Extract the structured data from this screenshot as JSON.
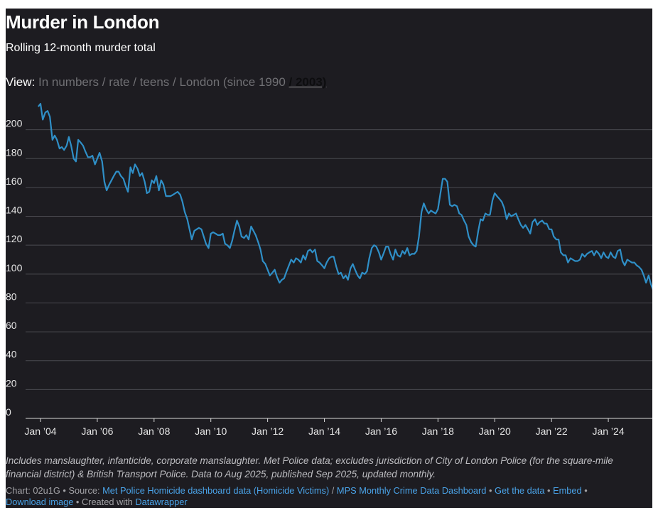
{
  "title": "Murder in London",
  "subtitle": "Rolling 12-month murder total",
  "view": {
    "label": "View:",
    "options": [
      "In numbers",
      "rate",
      "teens",
      "London (since 1990",
      "/ 2003)"
    ],
    "separator": " / ",
    "active_index": 4
  },
  "colors": {
    "background": "#1d1c21",
    "line": "#2f8fc7",
    "grid": "#4a4a50",
    "axis_text": "#e6e6e6",
    "link": "#4aa3e8"
  },
  "chart_data": {
    "type": "line",
    "title": "Murder in London",
    "subtitle": "Rolling 12-month murder total",
    "xlabel": "",
    "ylabel": "",
    "x_range": [
      2003.9,
      2025.25
    ],
    "ylim": [
      0,
      220
    ],
    "yticks": [
      0,
      20,
      40,
      60,
      80,
      100,
      120,
      140,
      160,
      180,
      200
    ],
    "xticks": [
      {
        "value": 2004,
        "label": "Jan ’04"
      },
      {
        "value": 2006,
        "label": "Jan ’06"
      },
      {
        "value": 2008,
        "label": "Jan ’08"
      },
      {
        "value": 2010,
        "label": "Jan ’10"
      },
      {
        "value": 2012,
        "label": "Jan ’12"
      },
      {
        "value": 2014,
        "label": "Jan ’14"
      },
      {
        "value": 2016,
        "label": "Jan ’16"
      },
      {
        "value": 2018,
        "label": "Jan ’18"
      },
      {
        "value": 2020,
        "label": "Jan ’20"
      },
      {
        "value": 2022,
        "label": "Jan ’22"
      },
      {
        "value": 2024,
        "label": "Jan ’24"
      }
    ],
    "grid": true,
    "series": [
      {
        "name": "Rolling 12-month murder total",
        "points": [
          [
            2003.92,
            216
          ],
          [
            2004.0,
            218
          ],
          [
            2004.08,
            207
          ],
          [
            2004.17,
            212
          ],
          [
            2004.25,
            213
          ],
          [
            2004.33,
            209
          ],
          [
            2004.42,
            193
          ],
          [
            2004.5,
            196
          ],
          [
            2004.58,
            193
          ],
          [
            2004.67,
            187
          ],
          [
            2004.75,
            188
          ],
          [
            2004.83,
            186
          ],
          [
            2004.92,
            189
          ],
          [
            2005.0,
            195
          ],
          [
            2005.08,
            189
          ],
          [
            2005.17,
            180
          ],
          [
            2005.25,
            178
          ],
          [
            2005.33,
            193
          ],
          [
            2005.42,
            191
          ],
          [
            2005.5,
            189
          ],
          [
            2005.58,
            185
          ],
          [
            2005.67,
            181
          ],
          [
            2005.75,
            181
          ],
          [
            2005.83,
            182
          ],
          [
            2005.92,
            176
          ],
          [
            2006.0,
            180
          ],
          [
            2006.08,
            184
          ],
          [
            2006.17,
            178
          ],
          [
            2006.25,
            164
          ],
          [
            2006.33,
            158
          ],
          [
            2006.42,
            162
          ],
          [
            2006.5,
            165
          ],
          [
            2006.58,
            168
          ],
          [
            2006.67,
            171
          ],
          [
            2006.75,
            171
          ],
          [
            2006.83,
            168
          ],
          [
            2006.92,
            166
          ],
          [
            2007.0,
            161
          ],
          [
            2007.08,
            157
          ],
          [
            2007.17,
            174
          ],
          [
            2007.25,
            170
          ],
          [
            2007.33,
            176
          ],
          [
            2007.42,
            173
          ],
          [
            2007.5,
            168
          ],
          [
            2007.58,
            170
          ],
          [
            2007.67,
            164
          ],
          [
            2007.75,
            156
          ],
          [
            2007.83,
            157
          ],
          [
            2007.92,
            165
          ],
          [
            2008.0,
            163
          ],
          [
            2008.08,
            168
          ],
          [
            2008.17,
            158
          ],
          [
            2008.25,
            165
          ],
          [
            2008.33,
            162
          ],
          [
            2008.42,
            154
          ],
          [
            2008.5,
            154
          ],
          [
            2008.58,
            154
          ],
          [
            2008.67,
            155
          ],
          [
            2008.75,
            156
          ],
          [
            2008.83,
            157
          ],
          [
            2008.92,
            155
          ],
          [
            2009.0,
            150
          ],
          [
            2009.08,
            143
          ],
          [
            2009.17,
            138
          ],
          [
            2009.25,
            131
          ],
          [
            2009.33,
            124
          ],
          [
            2009.42,
            130
          ],
          [
            2009.5,
            131
          ],
          [
            2009.58,
            132
          ],
          [
            2009.67,
            131
          ],
          [
            2009.75,
            126
          ],
          [
            2009.83,
            121
          ],
          [
            2009.92,
            118
          ],
          [
            2010.0,
            128
          ],
          [
            2010.08,
            129
          ],
          [
            2010.17,
            128
          ],
          [
            2010.25,
            127
          ],
          [
            2010.33,
            127
          ],
          [
            2010.42,
            128
          ],
          [
            2010.5,
            121
          ],
          [
            2010.58,
            120
          ],
          [
            2010.67,
            118
          ],
          [
            2010.75,
            123
          ],
          [
            2010.83,
            130
          ],
          [
            2010.92,
            137
          ],
          [
            2011.0,
            133
          ],
          [
            2011.08,
            126
          ],
          [
            2011.17,
            125
          ],
          [
            2011.25,
            127
          ],
          [
            2011.33,
            124
          ],
          [
            2011.42,
            133
          ],
          [
            2011.5,
            130
          ],
          [
            2011.58,
            127
          ],
          [
            2011.67,
            122
          ],
          [
            2011.75,
            117
          ],
          [
            2011.83,
            109
          ],
          [
            2011.92,
            107
          ],
          [
            2012.0,
            103
          ],
          [
            2012.08,
            99
          ],
          [
            2012.17,
            101
          ],
          [
            2012.25,
            103
          ],
          [
            2012.33,
            98
          ],
          [
            2012.42,
            94
          ],
          [
            2012.5,
            96
          ],
          [
            2012.58,
            97
          ],
          [
            2012.67,
            102
          ],
          [
            2012.75,
            106
          ],
          [
            2012.83,
            110
          ],
          [
            2012.92,
            108
          ],
          [
            2013.0,
            111
          ],
          [
            2013.08,
            110
          ],
          [
            2013.17,
            108
          ],
          [
            2013.25,
            113
          ],
          [
            2013.33,
            110
          ],
          [
            2013.42,
            116
          ],
          [
            2013.5,
            117
          ],
          [
            2013.58,
            115
          ],
          [
            2013.67,
            117
          ],
          [
            2013.75,
            109
          ],
          [
            2013.83,
            108
          ],
          [
            2013.92,
            106
          ],
          [
            2014.0,
            104
          ],
          [
            2014.08,
            108
          ],
          [
            2014.17,
            111
          ],
          [
            2014.25,
            112
          ],
          [
            2014.33,
            112
          ],
          [
            2014.42,
            105
          ],
          [
            2014.5,
            100
          ],
          [
            2014.58,
            101
          ],
          [
            2014.67,
            97
          ],
          [
            2014.75,
            99
          ],
          [
            2014.83,
            96
          ],
          [
            2014.92,
            104
          ],
          [
            2015.0,
            107
          ],
          [
            2015.08,
            103
          ],
          [
            2015.17,
            99
          ],
          [
            2015.25,
            97
          ],
          [
            2015.33,
            101
          ],
          [
            2015.42,
            100
          ],
          [
            2015.5,
            102
          ],
          [
            2015.58,
            111
          ],
          [
            2015.67,
            118
          ],
          [
            2015.75,
            120
          ],
          [
            2015.83,
            119
          ],
          [
            2015.92,
            115
          ],
          [
            2016.0,
            110
          ],
          [
            2016.08,
            114
          ],
          [
            2016.17,
            119
          ],
          [
            2016.25,
            119
          ],
          [
            2016.33,
            114
          ],
          [
            2016.42,
            110
          ],
          [
            2016.5,
            117
          ],
          [
            2016.58,
            113
          ],
          [
            2016.67,
            112
          ],
          [
            2016.75,
            116
          ],
          [
            2016.83,
            114
          ],
          [
            2016.92,
            118
          ],
          [
            2017.0,
            113
          ],
          [
            2017.08,
            114
          ],
          [
            2017.17,
            114
          ],
          [
            2017.25,
            116
          ],
          [
            2017.33,
            126
          ],
          [
            2017.42,
            143
          ],
          [
            2017.5,
            149
          ],
          [
            2017.58,
            145
          ],
          [
            2017.67,
            142
          ],
          [
            2017.75,
            144
          ],
          [
            2017.83,
            143
          ],
          [
            2017.92,
            142
          ],
          [
            2018.0,
            145
          ],
          [
            2018.08,
            155
          ],
          [
            2018.17,
            166
          ],
          [
            2018.25,
            166
          ],
          [
            2018.33,
            164
          ],
          [
            2018.42,
            148
          ],
          [
            2018.5,
            147
          ],
          [
            2018.58,
            148
          ],
          [
            2018.67,
            147
          ],
          [
            2018.75,
            142
          ],
          [
            2018.83,
            141
          ],
          [
            2018.92,
            137
          ],
          [
            2019.0,
            134
          ],
          [
            2019.08,
            126
          ],
          [
            2019.17,
            122
          ],
          [
            2019.25,
            120
          ],
          [
            2019.33,
            119
          ],
          [
            2019.42,
            130
          ],
          [
            2019.5,
            138
          ],
          [
            2019.58,
            137
          ],
          [
            2019.67,
            142
          ],
          [
            2019.75,
            141
          ],
          [
            2019.83,
            141
          ],
          [
            2019.92,
            151
          ],
          [
            2020.0,
            156
          ],
          [
            2020.08,
            154
          ],
          [
            2020.17,
            152
          ],
          [
            2020.25,
            150
          ],
          [
            2020.33,
            146
          ],
          [
            2020.42,
            138
          ],
          [
            2020.5,
            142
          ],
          [
            2020.58,
            140
          ],
          [
            2020.67,
            141
          ],
          [
            2020.75,
            142
          ],
          [
            2020.83,
            138
          ],
          [
            2020.92,
            134
          ],
          [
            2021.0,
            132
          ],
          [
            2021.08,
            134
          ],
          [
            2021.17,
            131
          ],
          [
            2021.25,
            128
          ],
          [
            2021.33,
            136
          ],
          [
            2021.42,
            138
          ],
          [
            2021.5,
            134
          ],
          [
            2021.58,
            136
          ],
          [
            2021.67,
            137
          ],
          [
            2021.75,
            135
          ],
          [
            2021.83,
            135
          ],
          [
            2021.92,
            131
          ],
          [
            2022.0,
            131
          ],
          [
            2022.08,
            126
          ],
          [
            2022.17,
            124
          ],
          [
            2022.25,
            124
          ],
          [
            2022.33,
            115
          ],
          [
            2022.42,
            113
          ],
          [
            2022.5,
            113
          ],
          [
            2022.58,
            108
          ],
          [
            2022.67,
            111
          ],
          [
            2022.75,
            110
          ],
          [
            2022.83,
            109
          ],
          [
            2022.92,
            109
          ],
          [
            2023.0,
            110
          ],
          [
            2023.08,
            114
          ],
          [
            2023.17,
            112
          ],
          [
            2023.25,
            114
          ],
          [
            2023.33,
            115
          ],
          [
            2023.42,
            116
          ],
          [
            2023.5,
            113
          ],
          [
            2023.58,
            116
          ],
          [
            2023.67,
            114
          ],
          [
            2023.75,
            111
          ],
          [
            2023.83,
            115
          ],
          [
            2023.92,
            112
          ],
          [
            2024.0,
            111
          ],
          [
            2024.08,
            115
          ],
          [
            2024.17,
            112
          ],
          [
            2024.25,
            111
          ],
          [
            2024.33,
            116
          ],
          [
            2024.42,
            117
          ],
          [
            2024.5,
            109
          ],
          [
            2024.58,
            106
          ],
          [
            2024.67,
            110
          ],
          [
            2024.75,
            109
          ],
          [
            2024.83,
            108
          ],
          [
            2024.92,
            108
          ],
          [
            2025.0,
            106
          ],
          [
            2025.08,
            105
          ],
          [
            2025.17,
            103
          ],
          [
            2025.25,
            99
          ],
          [
            2025.33,
            94
          ],
          [
            2025.42,
            99
          ],
          [
            2025.5,
            93
          ],
          [
            2025.58,
            89
          ]
        ]
      }
    ]
  },
  "notes": "Includes manslaughter, infanticide, corporate manslaughter. Met Police data; excludes jurisdiction of City of London Police (for the square-mile financial district) & British Transport Police. Data to Aug 2025, published Sep 2025, updated monthly.",
  "footer": {
    "chart_id": "Chart: 02u1G",
    "source_label": "Source:",
    "source_link_1": "Met Police Homicide dashboard data (Homicide Victims)",
    "source_sep": "/",
    "source_link_2": "MPS Monthly Crime Data Dashboard",
    "get_data": "Get the data",
    "embed": "Embed",
    "download": "Download image",
    "created_with": "Created with",
    "datawrapper": "Datawrapper",
    "dot": "•"
  }
}
